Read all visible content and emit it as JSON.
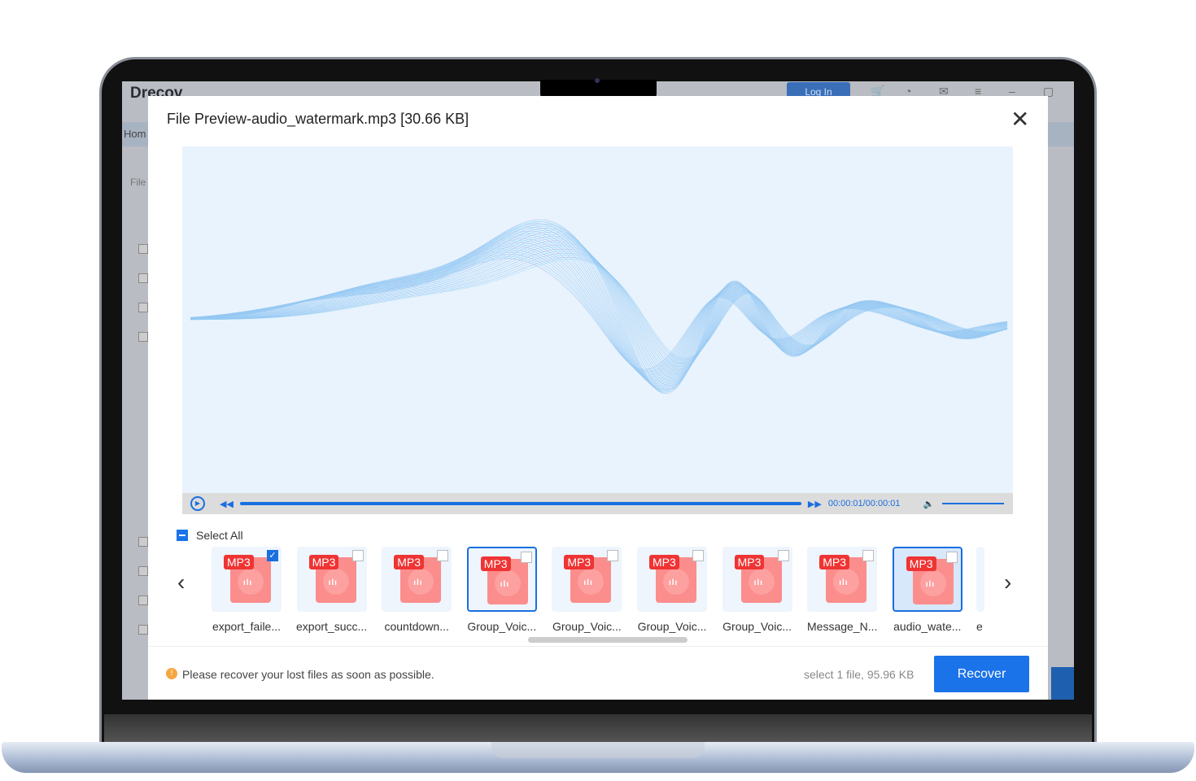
{
  "app": {
    "title": "Drecov",
    "home": "Hom",
    "file": "File",
    "login": "Log In"
  },
  "modal": {
    "title": "File Preview-audio_watermark.mp3 [30.66 KB]",
    "player": {
      "time": "00:00:01/00:00:01",
      "progress": 1.0,
      "volume": 1.0
    },
    "select_all": "Select All",
    "files": [
      {
        "name": "export_faile...",
        "checked": true,
        "selected": false
      },
      {
        "name": "export_succ...",
        "checked": false,
        "selected": false
      },
      {
        "name": "countdown...",
        "checked": false,
        "selected": false
      },
      {
        "name": "Group_Voic...",
        "checked": false,
        "selected": true
      },
      {
        "name": "Group_Voic...",
        "checked": false,
        "selected": false
      },
      {
        "name": "Group_Voic...",
        "checked": false,
        "selected": false
      },
      {
        "name": "Group_Voic...",
        "checked": false,
        "selected": false
      },
      {
        "name": "Message_N...",
        "checked": false,
        "selected": false
      },
      {
        "name": "audio_wate...",
        "checked": false,
        "selected": true
      }
    ],
    "file_tag": "MP3",
    "partial_next": "e",
    "footer": {
      "notice": "Please recover your lost files as soon as possible.",
      "selection": "select 1 file, 95.96 KB",
      "recover": "Recover"
    }
  },
  "colors": {
    "accent": "#1a73e8",
    "mp3_tag": "#ef3434",
    "wave": "#7fd0f5"
  }
}
